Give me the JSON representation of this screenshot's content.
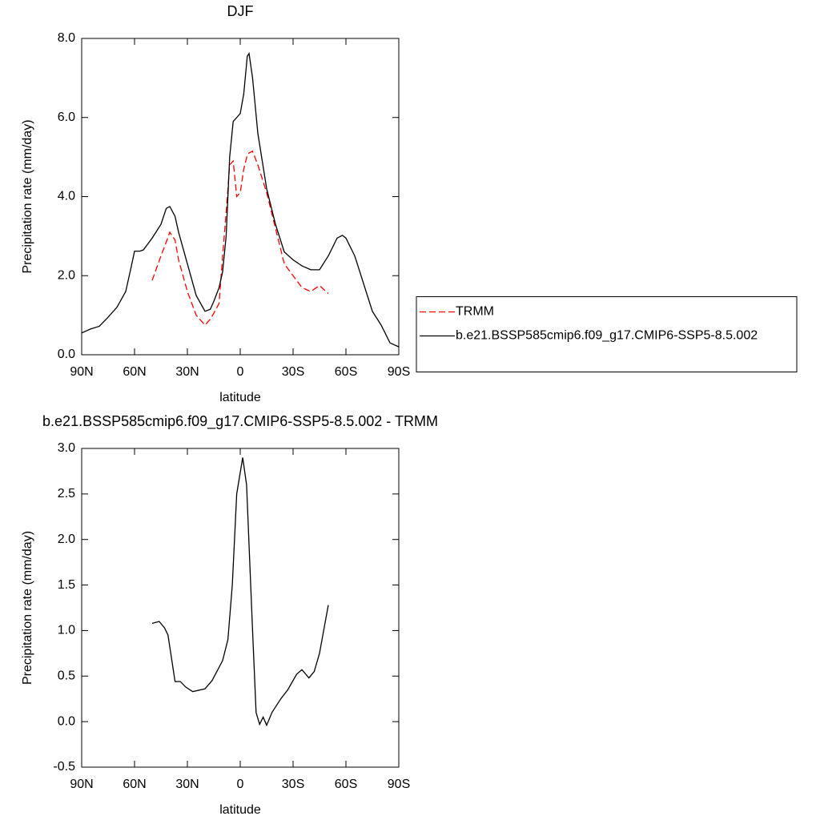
{
  "chart_data": [
    {
      "type": "line",
      "title": "DJF",
      "xlabel": "latitude",
      "ylabel": "Precipitation rate (mm/day)",
      "x": [
        90,
        85,
        80,
        75,
        70,
        65,
        62,
        60,
        57,
        55,
        50,
        45,
        42,
        40,
        37,
        35,
        30,
        25,
        20,
        17,
        15,
        12,
        10,
        8,
        6,
        4,
        2,
        0,
        -2,
        -4,
        -5,
        -7,
        -10,
        -15,
        -20,
        -25,
        -30,
        -35,
        -40,
        -45,
        -50,
        -55,
        -58,
        -60,
        -65,
        -70,
        -75,
        -80,
        -85,
        -90
      ],
      "series": [
        {
          "name": "TRMM",
          "color": "#ff0000",
          "line_style": "dashed",
          "values": [
            null,
            null,
            null,
            null,
            null,
            null,
            null,
            null,
            null,
            null,
            1.88,
            2.5,
            2.85,
            3.1,
            2.9,
            2.4,
            1.6,
            1.0,
            0.75,
            0.9,
            1.05,
            1.3,
            2.5,
            3.6,
            4.8,
            4.9,
            4.0,
            4.1,
            4.7,
            5.05,
            5.1,
            5.15,
            4.8,
            4.1,
            3.2,
            2.3,
            2.0,
            1.7,
            1.6,
            1.75,
            1.55,
            null,
            null,
            null,
            null,
            null,
            null,
            null,
            null,
            null
          ]
        },
        {
          "name": "b.e21.BSSP585cmip6.f09_g17.CMIP6-SSP5-8.5.002",
          "color": "#000000",
          "line_style": "solid",
          "values": [
            0.55,
            0.65,
            0.72,
            0.95,
            1.2,
            1.6,
            2.2,
            2.62,
            2.62,
            2.65,
            2.95,
            3.3,
            3.7,
            3.75,
            3.5,
            3.1,
            2.3,
            1.5,
            1.1,
            1.15,
            1.35,
            1.7,
            2.1,
            3.0,
            5.0,
            5.9,
            6.0,
            6.1,
            6.6,
            7.55,
            7.62,
            7.0,
            5.6,
            4.2,
            3.3,
            2.6,
            2.4,
            2.25,
            2.15,
            2.15,
            2.5,
            2.95,
            3.02,
            2.95,
            2.5,
            1.8,
            1.1,
            0.75,
            0.3,
            0.2
          ]
        }
      ],
      "xlim": [
        90,
        -90
      ],
      "xticks": [
        {
          "value": 90,
          "label": "90N"
        },
        {
          "value": 60,
          "label": "60N"
        },
        {
          "value": 30,
          "label": "30N"
        },
        0,
        {
          "value": -30,
          "label": "30S"
        },
        {
          "value": -60,
          "label": "60S"
        },
        {
          "value": -90,
          "label": "90S"
        }
      ],
      "ylim": [
        0,
        8
      ],
      "yticks": [
        {
          "value": 0,
          "label": "0.0"
        },
        {
          "value": 2,
          "label": "2.0"
        },
        {
          "value": 4,
          "label": "4.0"
        },
        {
          "value": 6,
          "label": "6.0"
        },
        {
          "value": 8,
          "label": "8.0"
        }
      ],
      "legend": "right"
    },
    {
      "type": "line",
      "title": "b.e21.BSSP585cmip6.f09_g17.CMIP6-SSP5-8.5.002 - TRMM",
      "xlabel": "latitude",
      "ylabel": "Precipitation rate (mm/day)",
      "x": [
        50,
        46,
        43,
        41,
        37,
        34,
        31,
        27,
        20,
        16,
        10,
        7,
        4.5,
        2,
        -1.4,
        -3.6,
        -7,
        -9,
        -11,
        -13,
        -15,
        -18,
        -23,
        -27,
        -32,
        -35,
        -39,
        -42,
        -45,
        -50
      ],
      "values": [
        1.08,
        1.1,
        1.03,
        0.95,
        0.44,
        0.44,
        0.38,
        0.33,
        0.36,
        0.45,
        0.67,
        0.9,
        1.5,
        2.5,
        2.9,
        2.6,
        1.0,
        0.1,
        -0.03,
        0.05,
        -0.04,
        0.1,
        0.25,
        0.35,
        0.52,
        0.57,
        0.48,
        0.55,
        0.75,
        1.28
      ],
      "color": "#000000",
      "line_style": "solid",
      "xlim": [
        90,
        -90
      ],
      "xticks": [
        {
          "value": 90,
          "label": "90N"
        },
        {
          "value": 60,
          "label": "60N"
        },
        {
          "value": 30,
          "label": "30N"
        },
        0,
        {
          "value": -30,
          "label": "30S"
        },
        {
          "value": -60,
          "label": "60S"
        },
        {
          "value": -90,
          "label": "90S"
        }
      ],
      "ylim": [
        -0.5,
        3
      ],
      "yticks": [
        -0.5,
        {
          "value": 0,
          "label": "0.0"
        },
        0.5,
        {
          "value": 1,
          "label": "1.0"
        },
        1.5,
        {
          "value": 2,
          "label": "2.0"
        },
        2.5,
        {
          "value": 3,
          "label": "3.0"
        }
      ]
    }
  ]
}
